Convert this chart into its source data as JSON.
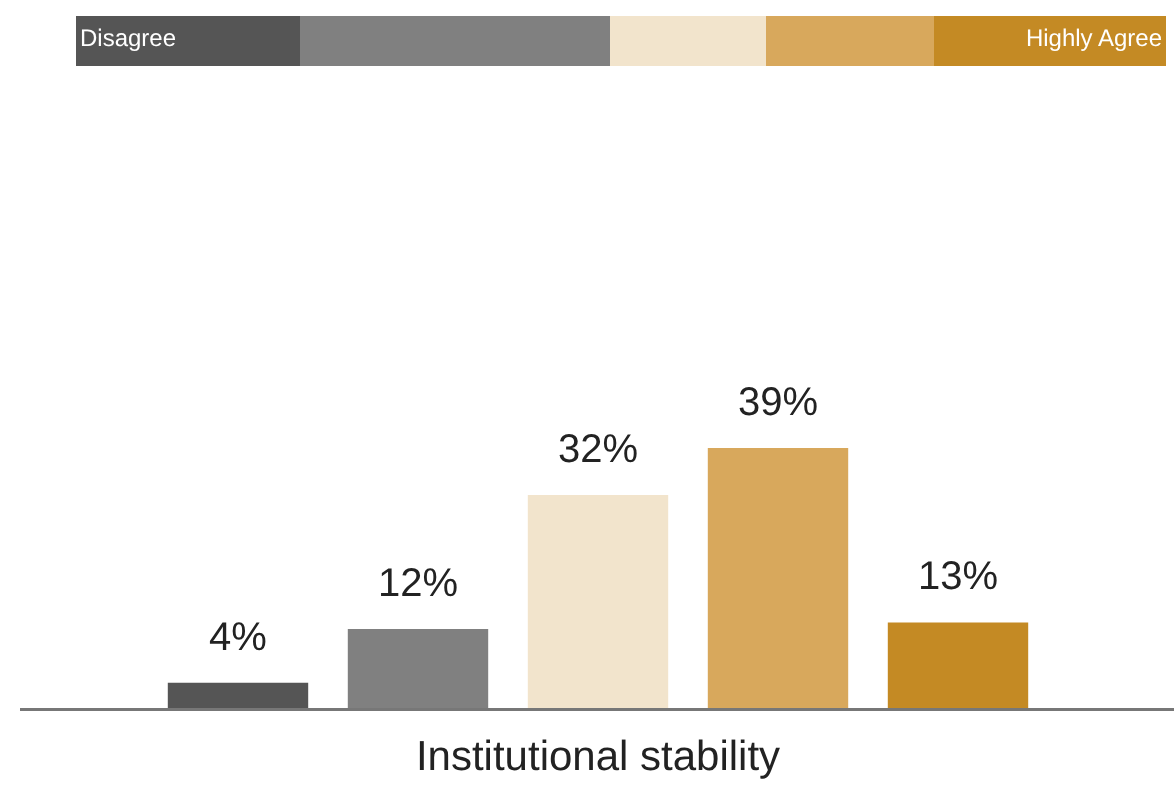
{
  "chart_data": {
    "type": "bar",
    "xlabel": "Institutional stability",
    "categories": [
      null,
      null,
      null,
      null,
      null
    ],
    "values": [
      4,
      12,
      32,
      39,
      13
    ],
    "colors": [
      "#555555",
      "#808080",
      "#f2e4cc",
      "#d8a85c",
      "#c48a24"
    ],
    "value_labels": [
      "4%",
      "12%",
      "32%",
      "39%",
      "13%"
    ],
    "annotations": [
      "Disagree",
      "Highly Agree"
    ]
  }
}
